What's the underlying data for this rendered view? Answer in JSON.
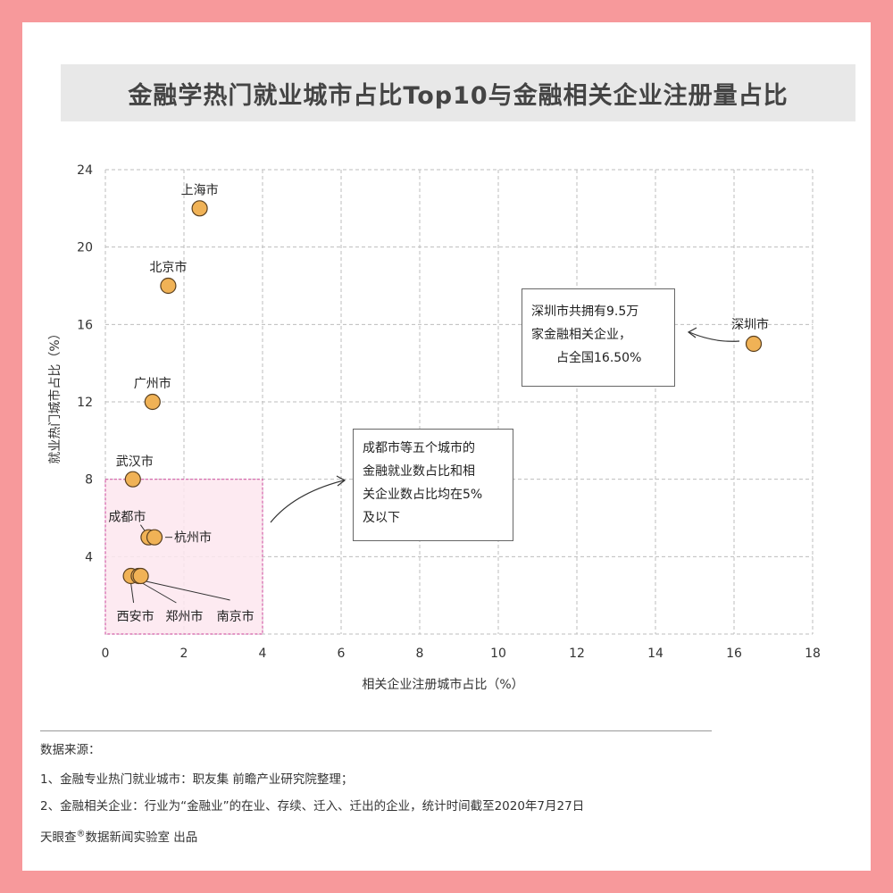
{
  "title": "金融学热门就业城市占比Top10与金融相关企业注册量占比",
  "colors": {
    "background": "#f7999b",
    "point_fill": "#f0b256",
    "point_stroke": "#5a4020",
    "highlight_fill": "#fde6ee",
    "highlight_stroke": "#d45fa8"
  },
  "chart_data": {
    "type": "scatter",
    "xlabel": "相关企业注册城市占比（%）",
    "ylabel": "就业热门城市占比（%）",
    "xlim": [
      0,
      18
    ],
    "ylim": [
      0,
      24
    ],
    "x_ticks": [
      0,
      2,
      4,
      6,
      8,
      10,
      12,
      14,
      16,
      18
    ],
    "y_ticks": [
      4,
      8,
      12,
      16,
      20,
      24
    ],
    "grid": true,
    "points": [
      {
        "label": "上海市",
        "x": 2.4,
        "y": 22
      },
      {
        "label": "北京市",
        "x": 1.6,
        "y": 18
      },
      {
        "label": "广州市",
        "x": 1.2,
        "y": 12
      },
      {
        "label": "武汉市",
        "x": 0.7,
        "y": 8
      },
      {
        "label": "成都市",
        "x": 1.1,
        "y": 5
      },
      {
        "label": "杭州市",
        "x": 1.25,
        "y": 5
      },
      {
        "label": "西安市",
        "x": 0.65,
        "y": 3
      },
      {
        "label": "郑州市",
        "x": 0.85,
        "y": 3
      },
      {
        "label": "南京市",
        "x": 0.9,
        "y": 3
      },
      {
        "label": "深圳市",
        "x": 16.5,
        "y": 15
      }
    ],
    "annotations": [
      {
        "id": "shenzhen",
        "lines": [
          "深圳市共拥有9.5万",
          "家金融相关企业，",
          "占全国16.50%"
        ]
      },
      {
        "id": "group",
        "lines": [
          "成都市等五个城市的",
          "金融就业数占比和相",
          "关企业数占比均在5%",
          "及以下"
        ]
      }
    ],
    "highlight_region": {
      "x": [
        0,
        4
      ],
      "y": [
        0,
        8
      ]
    }
  },
  "footer": {
    "heading": "数据来源：",
    "line1": "1、金融专业热门就业城市：职友集 前瞻产业研究院整理；",
    "line2": "2、金融相关企业：行业为“金融业”的在业、存续、迁入、迁出的企业，统计时间截至2020年7月27日",
    "credit_brand": "天眼查",
    "credit_mark": "®",
    "credit_rest": "数据新闻实验室 出品"
  }
}
